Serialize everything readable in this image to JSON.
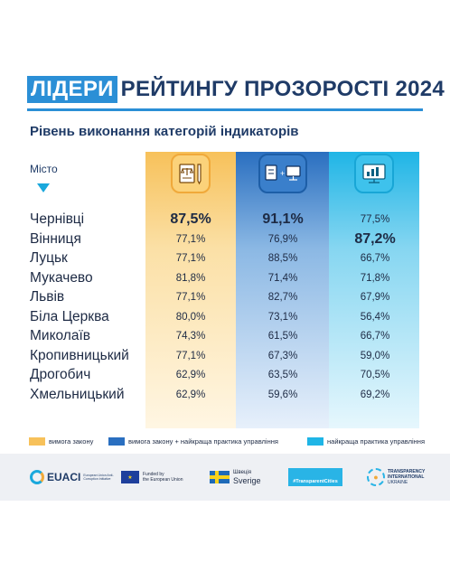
{
  "title": {
    "highlight": "ЛІДЕРИ",
    "rest": "РЕЙТИНГУ ПРОЗОРОСТІ 2024"
  },
  "subtitle": "Рівень виконання категорій індикаторів",
  "city_header": "Місто",
  "colors": {
    "column_1": "#f7c15a",
    "column_2": "#2a6fc0",
    "column_3": "#1fb5e6",
    "accent": "#2b8fd6"
  },
  "icons": [
    "law-document-icon",
    "law-plus-practice-icon",
    "best-practice-monitor-icon"
  ],
  "chart_data": {
    "type": "table",
    "title": "Рівень виконання категорій індикаторів",
    "row_header": "Місто",
    "columns": [
      "вимога закону",
      "вимога закону + найкраща практика управління",
      "найкраща практика управління"
    ],
    "rows": [
      {
        "city": "Чернівці",
        "values": [
          "87,5%",
          "91,1%",
          "77,5%"
        ],
        "highlight": [
          true,
          true,
          false
        ]
      },
      {
        "city": "Вінниця",
        "values": [
          "77,1%",
          "76,9%",
          "87,2%"
        ],
        "highlight": [
          false,
          false,
          true
        ]
      },
      {
        "city": "Луцьк",
        "values": [
          "77,1%",
          "88,5%",
          "66,7%"
        ],
        "highlight": [
          false,
          false,
          false
        ]
      },
      {
        "city": "Мукачево",
        "values": [
          "81,8%",
          "71,4%",
          "71,8%"
        ],
        "highlight": [
          false,
          false,
          false
        ]
      },
      {
        "city": "Львів",
        "values": [
          "77,1%",
          "82,7%",
          "67,9%"
        ],
        "highlight": [
          false,
          false,
          false
        ]
      },
      {
        "city": "Біла Церква",
        "values": [
          "80,0%",
          "73,1%",
          "56,4%"
        ],
        "highlight": [
          false,
          false,
          false
        ]
      },
      {
        "city": "Миколаїв",
        "values": [
          "74,3%",
          "61,5%",
          "66,7%"
        ],
        "highlight": [
          false,
          false,
          false
        ]
      },
      {
        "city": "Кропивницький",
        "values": [
          "77,1%",
          "67,3%",
          "59,0%"
        ],
        "highlight": [
          false,
          false,
          false
        ]
      },
      {
        "city": "Дрогобич",
        "values": [
          "62,9%",
          "63,5%",
          "70,5%"
        ],
        "highlight": [
          false,
          false,
          false
        ]
      },
      {
        "city": "Хмельницький",
        "values": [
          "62,9%",
          "59,6%",
          "69,2%"
        ],
        "highlight": [
          false,
          false,
          false
        ]
      }
    ],
    "legend": [
      {
        "label": "вимога закону",
        "color": "#f7c15a"
      },
      {
        "label": "вимога закону + найкраща практика управління",
        "color": "#2a6fc0"
      },
      {
        "label": "найкраща практика управління",
        "color": "#1fb5e6"
      }
    ]
  },
  "footer": {
    "euaci_brand": "EUACI",
    "euaci_tagline": "European Union Anti-Corruption Initiative",
    "eu_funded": "Funded by",
    "eu_funded_2": "the European Union",
    "sweden_1": "Швеція",
    "sweden_2": "Sverige",
    "transparent_cities": "#TransparentCities",
    "ti_1": "TRANSPARENCY",
    "ti_2": "INTERNATIONAL",
    "ti_3": "UKRAINE"
  }
}
